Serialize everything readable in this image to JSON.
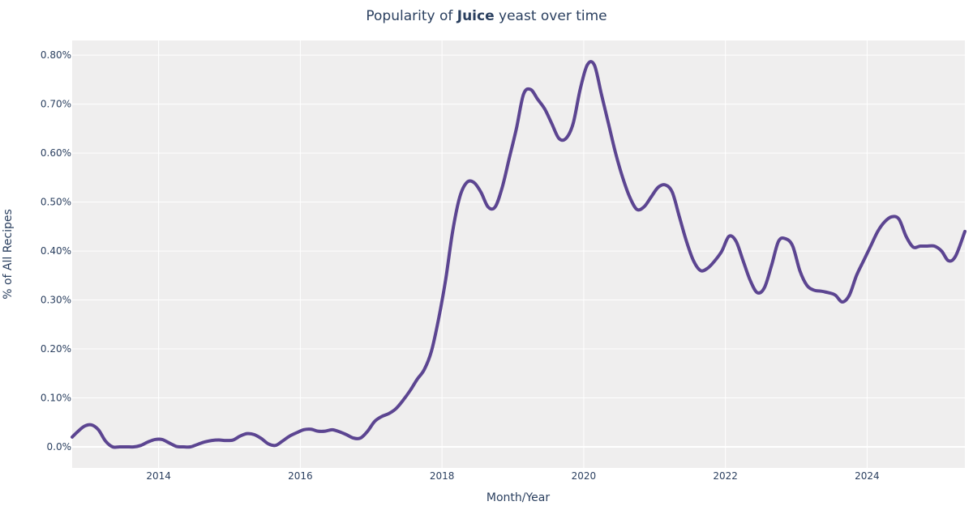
{
  "chart_data": {
    "type": "line",
    "title_prefix": "Popularity of ",
    "title_bold": "Juice",
    "title_suffix": " yeast over time",
    "xlabel": "Month/Year",
    "ylabel": "% of All Recipes",
    "xlim": [
      2012.78,
      2025.38
    ],
    "ylim": [
      -0.043,
      0.83
    ],
    "x_ticks": [
      2014,
      2016,
      2018,
      2020,
      2022,
      2024
    ],
    "x_tick_labels": [
      "2014",
      "2016",
      "2018",
      "2020",
      "2022",
      "2024"
    ],
    "y_ticks": [
      0.0,
      0.1,
      0.2,
      0.3,
      0.4,
      0.5,
      0.6,
      0.7,
      0.8
    ],
    "y_tick_labels": [
      "0.0%",
      "0.10%",
      "0.20%",
      "0.30%",
      "0.40%",
      "0.50%",
      "0.60%",
      "0.70%",
      "0.80%"
    ],
    "grid": true,
    "colors": {
      "line": "#5c4591",
      "plot_bg": "#efeeee",
      "grid": "#ffffff",
      "text": "#2a3f5f"
    },
    "series": [
      {
        "x": [
          2012.78,
          2012.85,
          2012.95,
          2013.05,
          2013.15,
          2013.25,
          2013.35,
          2013.45,
          2013.55,
          2013.65,
          2013.75,
          2013.85,
          2013.95,
          2014.05,
          2014.15,
          2014.25,
          2014.35,
          2014.45,
          2014.55,
          2014.65,
          2014.75,
          2014.85,
          2014.95,
          2015.05,
          2015.15,
          2015.25,
          2015.35,
          2015.45,
          2015.55,
          2015.65,
          2015.75,
          2015.85,
          2015.95,
          2016.05,
          2016.15,
          2016.25,
          2016.35,
          2016.45,
          2016.55,
          2016.65,
          2016.75,
          2016.85,
          2016.95,
          2017.05,
          2017.15,
          2017.25,
          2017.35,
          2017.45,
          2017.55,
          2017.65,
          2017.75,
          2017.85,
          2017.95,
          2018.05,
          2018.15,
          2018.25,
          2018.35,
          2018.45,
          2018.55,
          2018.65,
          2018.75,
          2018.85,
          2018.95,
          2019.05,
          2019.15,
          2019.25,
          2019.35,
          2019.45,
          2019.55,
          2019.65,
          2019.75,
          2019.85,
          2019.95,
          2020.05,
          2020.15,
          2020.25,
          2020.35,
          2020.45,
          2020.55,
          2020.65,
          2020.75,
          2020.85,
          2020.95,
          2021.05,
          2021.15,
          2021.25,
          2021.35,
          2021.45,
          2021.55,
          2021.65,
          2021.75,
          2021.85,
          2021.95,
          2022.05,
          2022.15,
          2022.25,
          2022.35,
          2022.45,
          2022.55,
          2022.65,
          2022.75,
          2022.85,
          2022.95,
          2023.05,
          2023.15,
          2023.25,
          2023.35,
          2023.45,
          2023.55,
          2023.65,
          2023.75,
          2023.85,
          2023.95,
          2024.05,
          2024.15,
          2024.25,
          2024.35,
          2024.45,
          2024.55,
          2024.65,
          2024.75,
          2024.85,
          2024.95,
          2025.05,
          2025.15,
          2025.25,
          2025.38
        ],
        "y": [
          0.0002,
          0.0003,
          0.00042,
          0.00045,
          0.00035,
          0.00012,
          0.0,
          0.0,
          0.0,
          0.0,
          3e-05,
          0.0001,
          0.00015,
          0.00015,
          8e-05,
          1e-05,
          0.0,
          0.0,
          5e-05,
          0.0001,
          0.00013,
          0.00014,
          0.00013,
          0.00014,
          0.00022,
          0.00027,
          0.00025,
          0.00017,
          6e-05,
          3e-05,
          0.00012,
          0.00022,
          0.00029,
          0.00035,
          0.00036,
          0.00032,
          0.00032,
          0.00035,
          0.00031,
          0.00025,
          0.00018,
          0.00018,
          0.00032,
          0.00052,
          0.00062,
          0.00068,
          0.00078,
          0.00095,
          0.00115,
          0.00138,
          0.00158,
          0.00195,
          0.0026,
          0.0034,
          0.0044,
          0.0051,
          0.0054,
          0.0054,
          0.0052,
          0.0049,
          0.0049,
          0.0053,
          0.0059,
          0.0065,
          0.0072,
          0.0073,
          0.0071,
          0.0069,
          0.0066,
          0.0063,
          0.0063,
          0.0066,
          0.0073,
          0.0078,
          0.0078,
          0.0072,
          0.0066,
          0.006,
          0.0055,
          0.0051,
          0.00485,
          0.0049,
          0.0051,
          0.0053,
          0.00535,
          0.0052,
          0.0047,
          0.0042,
          0.0038,
          0.0036,
          0.00365,
          0.0038,
          0.004,
          0.0043,
          0.0042,
          0.0038,
          0.0034,
          0.00315,
          0.00325,
          0.0037,
          0.0042,
          0.00425,
          0.0041,
          0.0036,
          0.0033,
          0.0032,
          0.00318,
          0.00315,
          0.0031,
          0.00296,
          0.0031,
          0.0035,
          0.0038,
          0.0041,
          0.0044,
          0.0046,
          0.0047,
          0.00465,
          0.0043,
          0.00408,
          0.0041,
          0.0041,
          0.0041,
          0.004,
          0.0038,
          0.0039,
          0.0044
        ]
      }
    ]
  }
}
